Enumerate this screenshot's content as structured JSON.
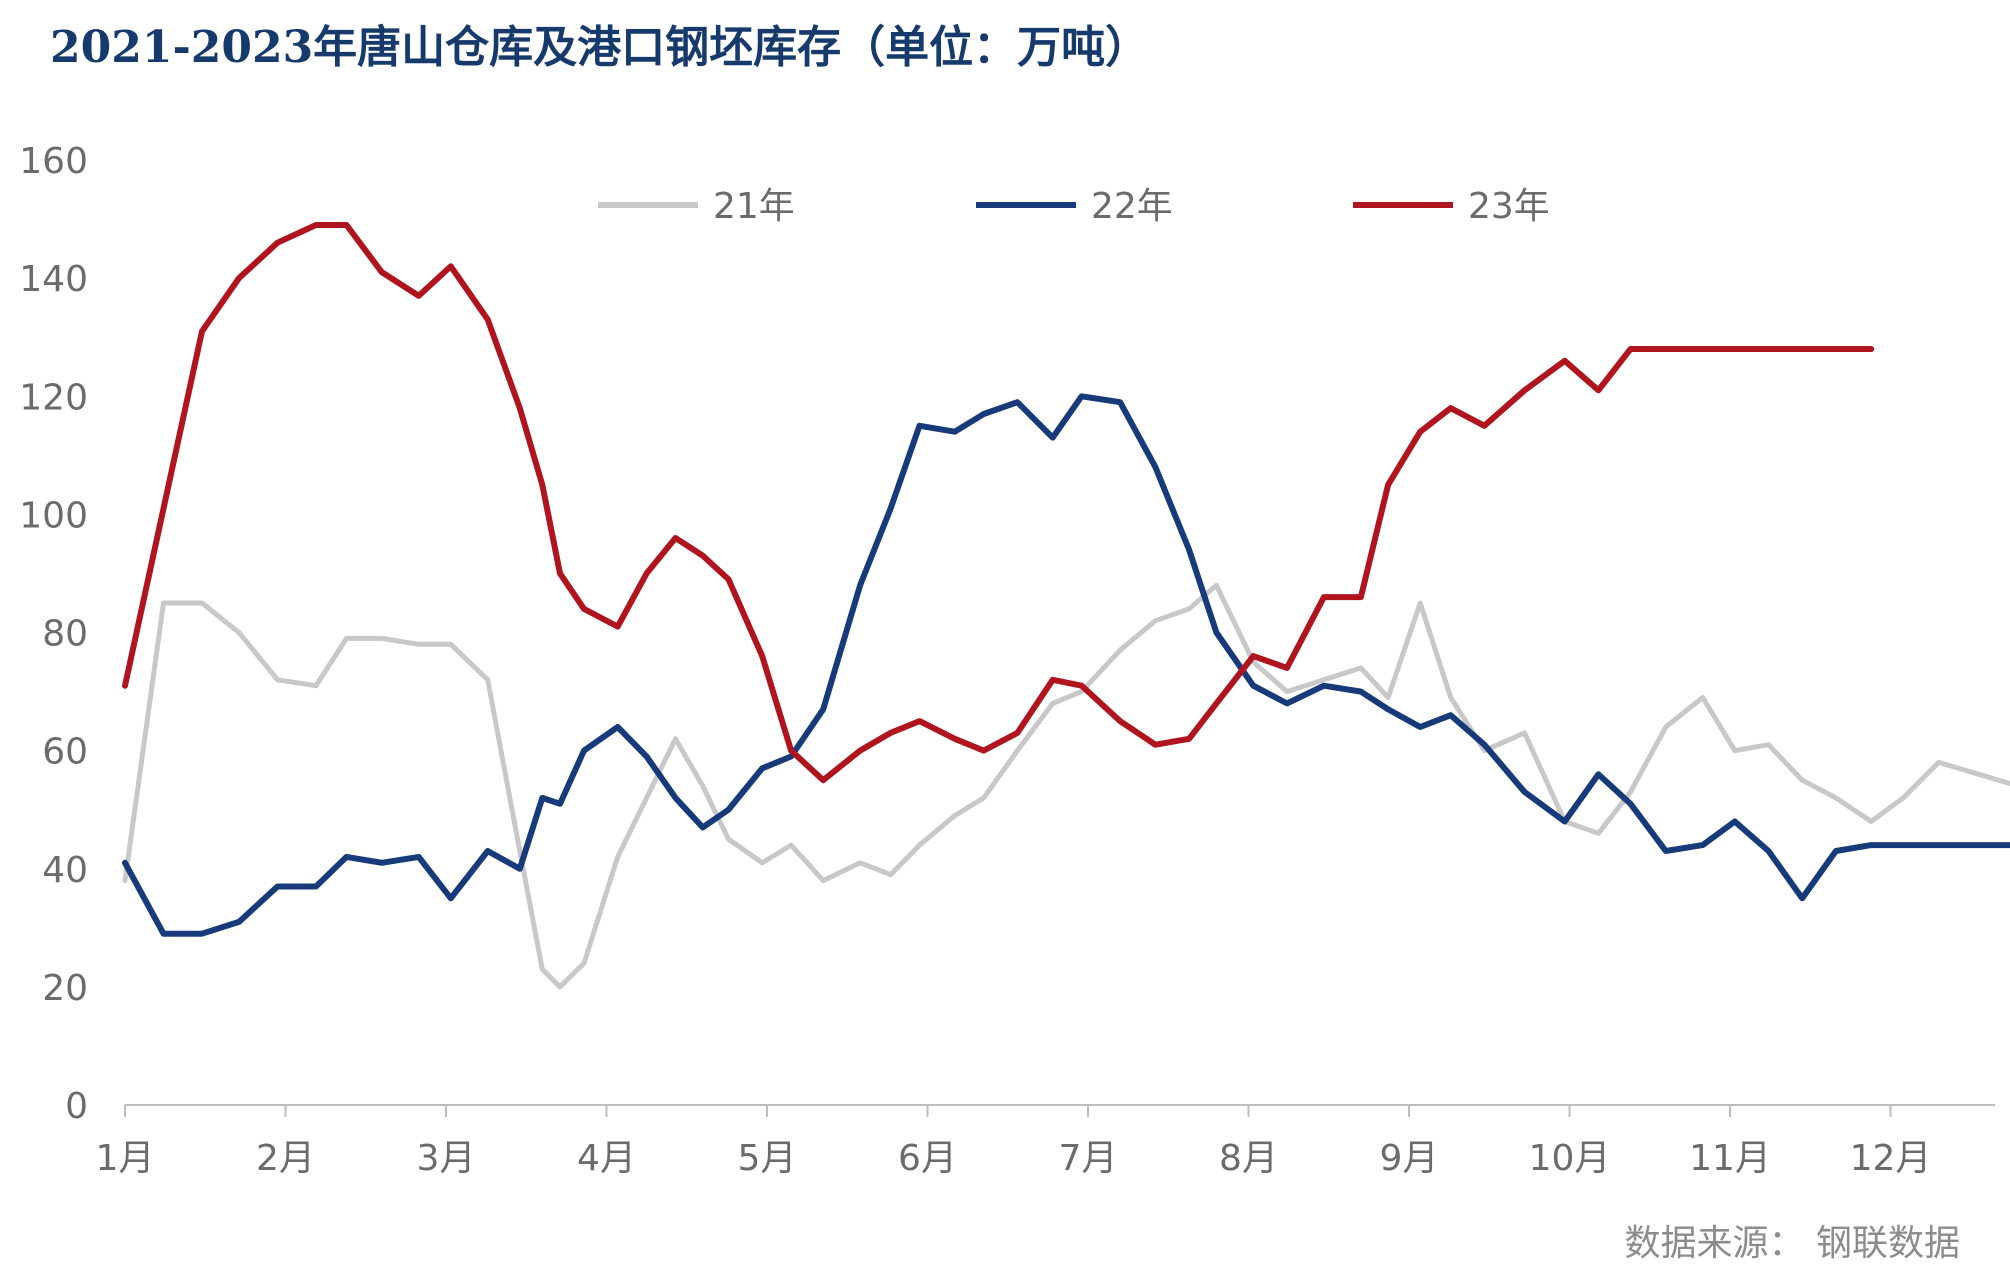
{
  "chart_data": {
    "type": "line",
    "title": "2021-2023年唐山仓库及港口钢坯库存（单位：万吨）",
    "xlabel": "",
    "ylabel": "",
    "ylim": [
      0,
      160
    ],
    "yticks": [
      0,
      20,
      40,
      60,
      80,
      100,
      120,
      140,
      160
    ],
    "grid": false,
    "legend_position": "top-center",
    "x_range": [
      0,
      11.8
    ],
    "month_labels": [
      "1月",
      "2月",
      "3月",
      "4月",
      "5月",
      "6月",
      "7月",
      "8月",
      "9月",
      "10月",
      "11月",
      "12月"
    ],
    "series": [
      {
        "name": "21年",
        "color": "#c8c8c8",
        "x": [
          0.0,
          0.24,
          0.48,
          0.71,
          0.95,
          1.19,
          1.38,
          1.6,
          1.83,
          2.03,
          2.26,
          2.46,
          2.6,
          2.71,
          2.86,
          3.07,
          3.25,
          3.43,
          3.6,
          3.76,
          3.97,
          4.15,
          4.35,
          4.58,
          4.77,
          4.95,
          5.17,
          5.35,
          5.56,
          5.78,
          5.96,
          6.2,
          6.42,
          6.63,
          6.8,
          7.03,
          7.24,
          7.47,
          7.7,
          7.87,
          8.07,
          8.26,
          8.47,
          8.72,
          8.97,
          9.18,
          9.38,
          9.6,
          9.83,
          10.03,
          10.24,
          10.45,
          10.66,
          10.88,
          11.08,
          11.3,
          11.55,
          11.8
        ],
        "values": [
          38,
          85,
          85,
          80,
          72,
          71,
          79,
          79,
          78,
          78,
          72,
          43,
          23,
          20,
          24,
          42,
          52,
          62,
          54,
          45,
          41,
          44,
          38,
          41,
          39,
          44,
          49,
          52,
          60,
          68,
          70,
          77,
          82,
          84,
          88,
          75,
          70,
          72,
          74,
          69,
          85,
          69,
          60,
          63,
          48,
          46,
          53,
          64,
          69,
          60,
          61,
          55,
          52,
          48,
          52,
          58,
          56,
          54
        ]
      },
      {
        "name": "22年",
        "color": "#163a7a",
        "x": [
          0.0,
          0.24,
          0.48,
          0.71,
          0.95,
          1.19,
          1.38,
          1.6,
          1.83,
          2.03,
          2.26,
          2.46,
          2.6,
          2.71,
          2.86,
          3.07,
          3.25,
          3.43,
          3.6,
          3.76,
          3.97,
          4.15,
          4.35,
          4.58,
          4.77,
          4.95,
          5.17,
          5.35,
          5.56,
          5.78,
          5.96,
          6.2,
          6.42,
          6.63,
          6.8,
          7.03,
          7.24,
          7.47,
          7.7,
          7.87,
          8.07,
          8.26,
          8.47,
          8.72,
          8.97,
          9.18,
          9.38,
          9.6,
          9.83,
          10.03,
          10.24,
          10.45,
          10.66,
          10.88,
          11.08,
          11.3,
          11.55,
          11.8
        ],
        "values": [
          41,
          29,
          29,
          31,
          37,
          37,
          42,
          41,
          42,
          35,
          43,
          40,
          52,
          51,
          60,
          64,
          59,
          52,
          47,
          50,
          57,
          59,
          67,
          88,
          101,
          115,
          114,
          117,
          119,
          113,
          120,
          119,
          108,
          94,
          80,
          71,
          68,
          71,
          70,
          67,
          64,
          66,
          61,
          53,
          48,
          56,
          51,
          43,
          44,
          48,
          43,
          35,
          43,
          44,
          44,
          44,
          44,
          44
        ]
      },
      {
        "name": "23年",
        "color": "#b0141e",
        "x": [
          0.0,
          0.24,
          0.48,
          0.71,
          0.95,
          1.19,
          1.38,
          1.6,
          1.83,
          2.03,
          2.26,
          2.46,
          2.6,
          2.71,
          2.86,
          3.07,
          3.25,
          3.43,
          3.6,
          3.76,
          3.97,
          4.15,
          4.35,
          4.58,
          4.77,
          4.95,
          5.17,
          5.35,
          5.56,
          5.78,
          5.96,
          6.2,
          6.42,
          6.63,
          6.8,
          7.03,
          7.24,
          7.47,
          7.7,
          7.87,
          8.07,
          8.26,
          8.47,
          8.72,
          8.97,
          9.18,
          9.38,
          9.6,
          9.83,
          10.03,
          10.24,
          10.45,
          10.66,
          10.88
        ],
        "values": [
          71,
          101,
          131,
          140,
          146,
          149,
          149,
          141,
          137,
          142,
          133,
          118,
          105,
          90,
          84,
          81,
          90,
          96,
          93,
          89,
          76,
          60,
          55,
          60,
          63,
          65,
          62,
          60,
          63,
          72,
          71,
          65,
          61,
          62,
          68,
          76,
          74,
          86,
          86,
          105,
          114,
          118,
          115,
          121,
          126,
          121,
          128,
          128,
          128,
          128,
          128,
          128,
          128,
          128
        ]
      }
    ],
    "source": "数据来源： 钢联数据"
  }
}
